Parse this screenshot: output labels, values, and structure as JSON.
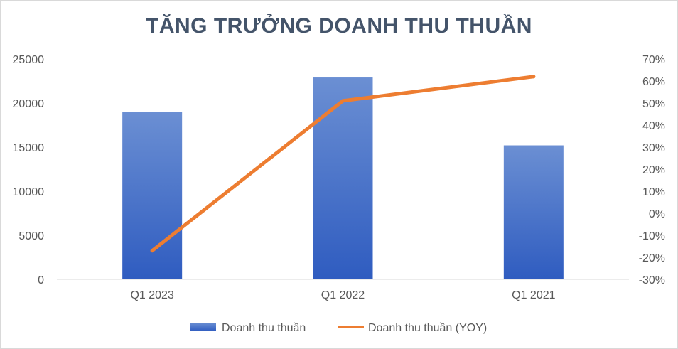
{
  "chart_data": {
    "type": "bar",
    "title": "TĂNG TRƯỞNG DOANH THU THUẦN",
    "categories": [
      "Q1 2023",
      "Q1 2022",
      "Q1 2021"
    ],
    "series": [
      {
        "name": "Doanh thu thuần",
        "type": "bar",
        "axis": "left",
        "color": "#4472c4",
        "values": [
          19000,
          22900,
          15200
        ]
      },
      {
        "name": "Doanh thu thuần (YOY)",
        "type": "line",
        "axis": "right",
        "color": "#ed7d31",
        "values": [
          -17,
          51,
          62
        ]
      }
    ],
    "y_left": {
      "min": 0,
      "max": 25000,
      "ticks": [
        "0",
        "5000",
        "10000",
        "15000",
        "20000",
        "25000"
      ]
    },
    "y_right": {
      "min": -30,
      "max": 70,
      "ticks": [
        "-30%",
        "-20%",
        "-10%",
        "0%",
        "10%",
        "20%",
        "30%",
        "40%",
        "50%",
        "60%",
        "70%"
      ]
    },
    "grid": false,
    "legend": "bottom"
  }
}
